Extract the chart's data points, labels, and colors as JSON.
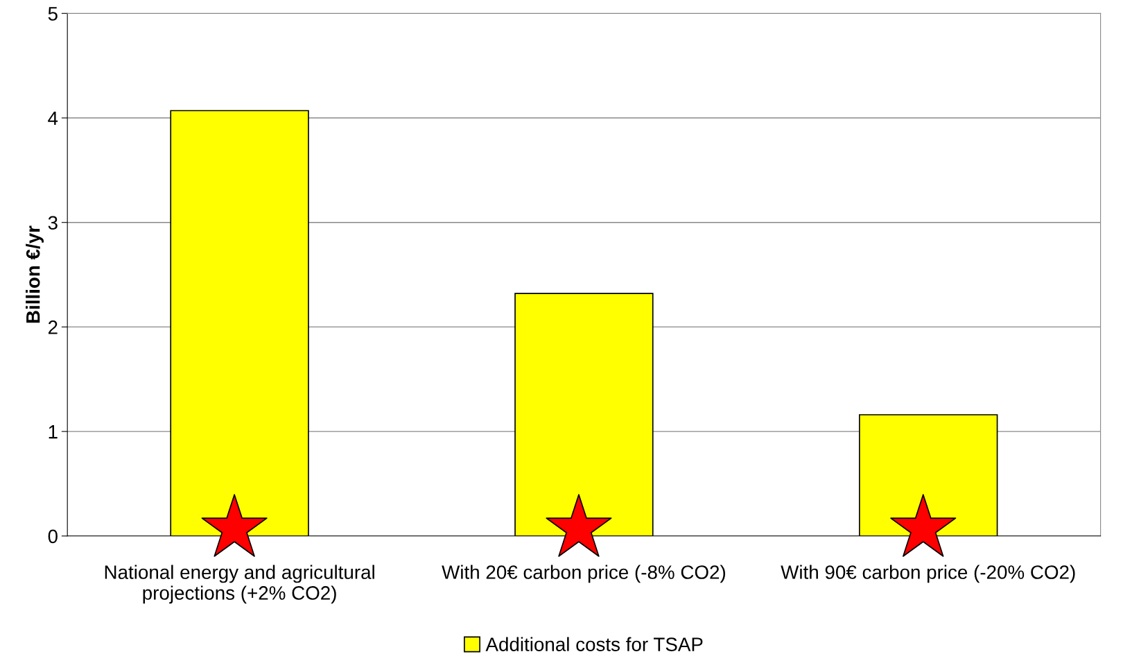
{
  "chart_data": {
    "type": "bar",
    "ylabel": "Billion €/yr",
    "categories": [
      "National energy and agricultural\nprojections (+2% CO2)",
      "With 20€ carbon price (-8% CO2)",
      "With 90€ carbon price (-20% CO2)"
    ],
    "series": [
      {
        "name": "Additional costs for TSAP",
        "color": "#ffff00",
        "values": [
          4.07,
          2.32,
          1.16
        ]
      },
      {
        "type": "scatter",
        "marker": "star",
        "color": "#ff0000",
        "x": [
          "National energy and agricultural\nprojections (+2% CO2)",
          "With 20€ carbon price (-8% CO2)",
          "With 90€ carbon price (-20% CO2)"
        ],
        "values": [
          0.07,
          0.07,
          0.07
        ]
      }
    ],
    "ylim": [
      0,
      5
    ],
    "yticks": [
      0,
      1,
      2,
      3,
      4,
      5
    ],
    "grid": "y",
    "legend": "bottom"
  }
}
